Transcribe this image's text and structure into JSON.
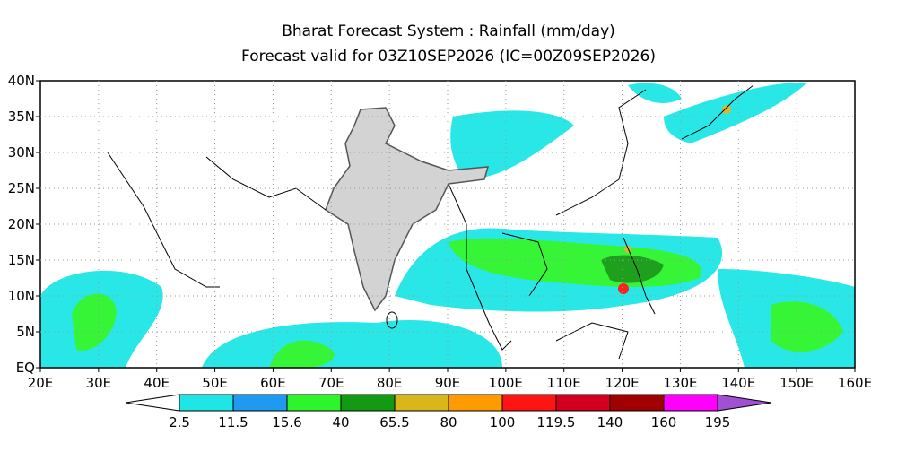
{
  "title": [
    "Bharat Forecast System : Rainfall (mm/day)",
    "Forecast valid for 03Z10SEP2026 (IC=00Z09SEP2026)"
  ],
  "map": {
    "lat_labels": [
      "EQ",
      "5N",
      "10N",
      "15N",
      "20N",
      "25N",
      "30N",
      "35N",
      "40N"
    ],
    "lon_labels": [
      "20E",
      "30E",
      "40E",
      "50E",
      "60E",
      "70E",
      "80E",
      "90E",
      "100E",
      "110E",
      "120E",
      "130E",
      "140E",
      "150E",
      "160E"
    ]
  },
  "colorbar": {
    "colors": [
      "#ffffff",
      "#1ee6e6",
      "#1e9af0",
      "#2cf52c",
      "#129b12",
      "#d9b61a",
      "#ff9b00",
      "#ff1414",
      "#d2001e",
      "#a00000",
      "#ff00ff",
      "#a050d2"
    ],
    "labels": [
      "2.5",
      "11.5",
      "15.6",
      "40",
      "65.5",
      "80",
      "100",
      "119.5",
      "140",
      "160",
      "195"
    ]
  }
}
